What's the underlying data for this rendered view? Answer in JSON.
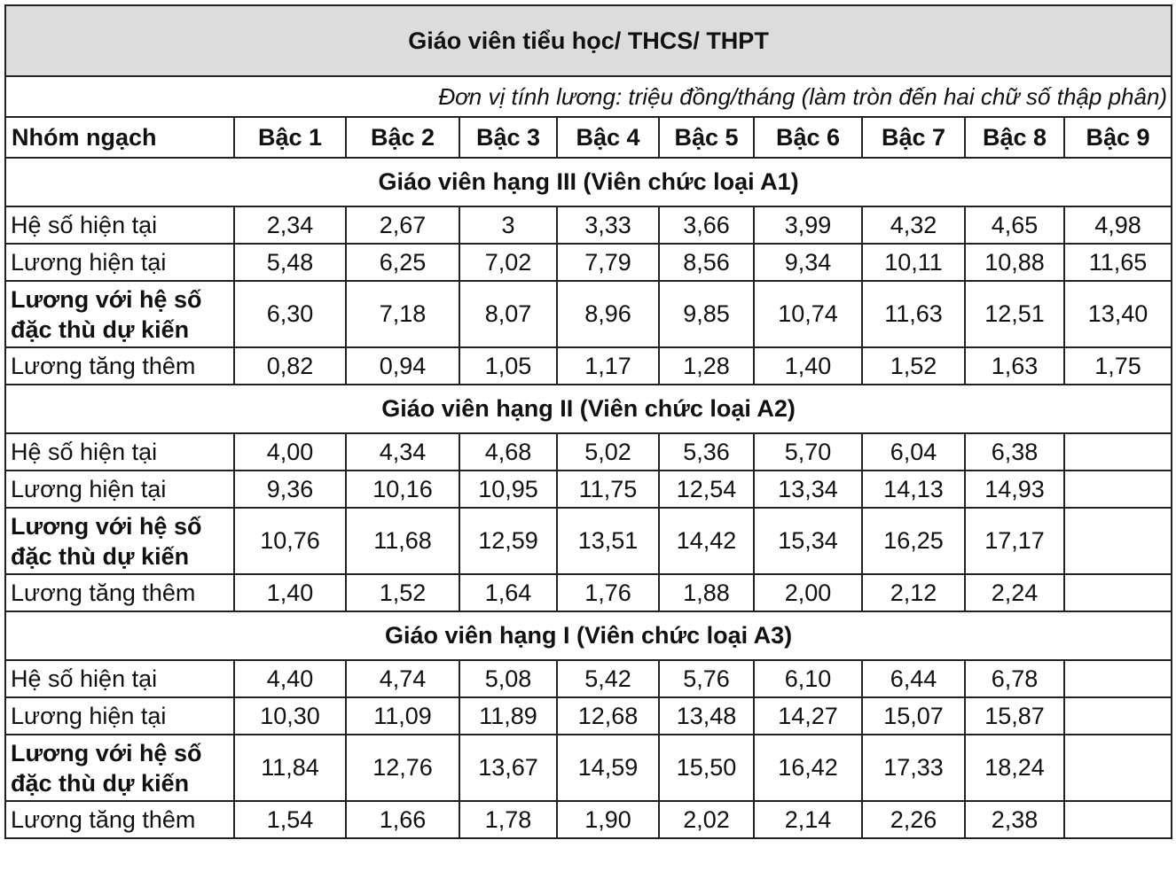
{
  "title": "Giáo viên tiểu học/ THCS/ THPT",
  "unit_note": "Đơn vị tính lương: triệu đồng/tháng (làm tròn đến hai chữ số thập phân)",
  "columns": [
    "Nhóm ngạch",
    "Bậc 1",
    "Bậc 2",
    "Bậc 3",
    "Bậc 4",
    "Bậc 5",
    "Bậc 6",
    "Bậc 7",
    "Bậc 8",
    "Bậc 9"
  ],
  "sections": [
    {
      "title": "Giáo viên hạng III (Viên chức loại A1)",
      "rows": [
        {
          "label": "Hệ số hiện tại",
          "values": [
            "2,34",
            "2,67",
            "3",
            "3,33",
            "3,66",
            "3,99",
            "4,32",
            "4,65",
            "4,98"
          ]
        },
        {
          "label": "Lương hiện tại",
          "values": [
            "5,48",
            "6,25",
            "7,02",
            "7,79",
            "8,56",
            "9,34",
            "10,11",
            "10,88",
            "11,65"
          ]
        },
        {
          "label": "Lương với hệ số đặc thù dự kiến",
          "values": [
            "6,30",
            "7,18",
            "8,07",
            "8,96",
            "9,85",
            "10,74",
            "11,63",
            "12,51",
            "13,40"
          ],
          "tall": true
        },
        {
          "label": "Lương tăng thêm",
          "values": [
            "0,82",
            "0,94",
            "1,05",
            "1,17",
            "1,28",
            "1,40",
            "1,52",
            "1,63",
            "1,75"
          ]
        }
      ]
    },
    {
      "title": "Giáo viên hạng II (Viên chức loại A2)",
      "rows": [
        {
          "label": "Hệ số hiện tại",
          "values": [
            "4,00",
            "4,34",
            "4,68",
            "5,02",
            "5,36",
            "5,70",
            "6,04",
            "6,38",
            ""
          ]
        },
        {
          "label": "Lương hiện tại",
          "values": [
            "9,36",
            "10,16",
            "10,95",
            "11,75",
            "12,54",
            "13,34",
            "14,13",
            "14,93",
            ""
          ]
        },
        {
          "label": "Lương với hệ số đặc thù dự kiến",
          "values": [
            "10,76",
            "11,68",
            "12,59",
            "13,51",
            "14,42",
            "15,34",
            "16,25",
            "17,17",
            ""
          ],
          "tall": true
        },
        {
          "label": "Lương tăng thêm",
          "values": [
            "1,40",
            "1,52",
            "1,64",
            "1,76",
            "1,88",
            "2,00",
            "2,12",
            "2,24",
            ""
          ]
        }
      ]
    },
    {
      "title": "Giáo viên hạng I (Viên chức loại A3)",
      "rows": [
        {
          "label": "Hệ số hiện tại",
          "values": [
            "4,40",
            "4,74",
            "5,08",
            "5,42",
            "5,76",
            "6,10",
            "6,44",
            "6,78",
            ""
          ]
        },
        {
          "label": "Lương hiện tại",
          "values": [
            "10,30",
            "11,09",
            "11,89",
            "12,68",
            "13,48",
            "14,27",
            "15,07",
            "15,87",
            ""
          ]
        },
        {
          "label": "Lương với hệ số đặc thù dự kiến",
          "values": [
            "11,84",
            "12,76",
            "13,67",
            "14,59",
            "15,50",
            "16,42",
            "17,33",
            "18,24",
            ""
          ],
          "tall": true
        },
        {
          "label": "Lương tăng thêm",
          "values": [
            "1,54",
            "1,66",
            "1,78",
            "1,90",
            "2,02",
            "2,14",
            "2,26",
            "2,38",
            ""
          ]
        }
      ]
    }
  ]
}
